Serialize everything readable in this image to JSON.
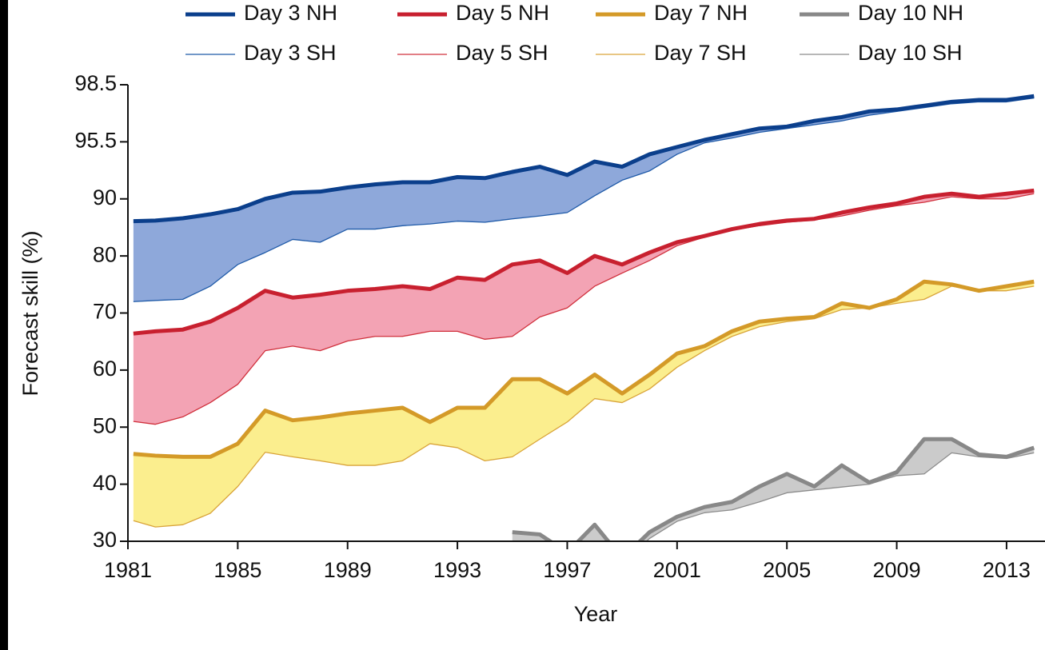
{
  "chart_data": {
    "type": "line",
    "xlabel": "Year",
    "ylabel": "Forecast skill (%)",
    "yscale": "tick-piecewise",
    "x": [
      1981.2,
      1982,
      1983,
      1984,
      1985,
      1986,
      1987,
      1988,
      1989,
      1990,
      1991,
      1992,
      1993,
      1994,
      1995,
      1996,
      1997,
      1998,
      1999,
      2000,
      2001,
      2002,
      2003,
      2004,
      2005,
      2006,
      2007,
      2008,
      2009,
      2010,
      2011,
      2012,
      2013,
      2014
    ],
    "xlim": [
      1981,
      2014.4
    ],
    "xticks": [
      1981,
      1985,
      1989,
      1993,
      1997,
      2001,
      2005,
      2009,
      2013
    ],
    "ylim": [
      30,
      98.5
    ],
    "yticks": [
      30,
      40,
      50,
      60,
      70,
      80,
      90,
      95.5,
      98.5
    ],
    "series": [
      {
        "name": "Day 3 NH",
        "color": "#0b3f8c",
        "linewidth": 5,
        "fill": "#8ea8da",
        "values": [
          86.1,
          86.2,
          86.6,
          87.3,
          88.2,
          90,
          90.6,
          90.7,
          91.1,
          91.4,
          91.6,
          91.6,
          92.1,
          92,
          92.6,
          93.1,
          92.3,
          93.6,
          93.1,
          94.3,
          95,
          95.6,
          95.9,
          96.2,
          96.3,
          96.6,
          96.8,
          97.1,
          97.2,
          97.4,
          97.6,
          97.7,
          97.7,
          97.9
        ]
      },
      {
        "name": "Day 3 SH",
        "color": "#1f5aa8",
        "linewidth": 1.3,
        "values": [
          72,
          72.2,
          72.4,
          74.7,
          78.5,
          80.6,
          82.9,
          82.4,
          84.7,
          84.7,
          85.3,
          85.6,
          86.1,
          85.9,
          86.5,
          87,
          87.6,
          90.3,
          91.8,
          92.7,
          94.3,
          95.4,
          95.7,
          96,
          96.2,
          96.4,
          96.6,
          96.9,
          97.1,
          97.3,
          97.5,
          97.6,
          97.6,
          97.8
        ]
      },
      {
        "name": "Day 5 NH",
        "color": "#c8202f",
        "linewidth": 5,
        "fill": "#f3a3b4",
        "values": [
          66.4,
          66.8,
          67.1,
          68.5,
          70.9,
          73.9,
          72.7,
          73.2,
          73.9,
          74.2,
          74.7,
          74.2,
          76.2,
          75.8,
          78.5,
          79.2,
          77,
          80,
          78.5,
          80.6,
          82.4,
          83.5,
          84.7,
          85.6,
          86.2,
          86.5,
          87.6,
          88.5,
          89.2,
          90.2,
          90.5,
          90.2,
          90.5,
          90.8
        ]
      },
      {
        "name": "Day 5 SH",
        "color": "#d0303c",
        "linewidth": 1.3,
        "values": [
          51,
          50.5,
          51.8,
          54.3,
          57.5,
          63.4,
          64.2,
          63.4,
          65.1,
          65.9,
          65.9,
          66.8,
          66.8,
          65.4,
          65.9,
          69.3,
          70.9,
          74.7,
          77,
          79.2,
          81.8,
          83.3,
          84.5,
          85.3,
          85.9,
          86.3,
          87,
          88,
          88.8,
          89.4,
          90.2,
          90,
          90,
          90.5
        ]
      },
      {
        "name": "Day 7 NH",
        "color": "#d49a28",
        "linewidth": 5,
        "fill": "#fbee8e",
        "values": [
          45.3,
          45,
          44.8,
          44.8,
          47.1,
          52.9,
          51.2,
          51.7,
          52.4,
          52.9,
          53.4,
          50.9,
          53.4,
          53.4,
          58.4,
          58.4,
          55.9,
          59.2,
          55.9,
          59.2,
          62.9,
          64.2,
          66.8,
          68.5,
          69,
          69.3,
          71.7,
          70.9,
          72.4,
          75.5,
          75,
          73.9,
          74.7,
          75.5
        ]
      },
      {
        "name": "Day 7 SH",
        "color": "#d9a43a",
        "linewidth": 1.3,
        "values": [
          33.6,
          32.5,
          32.9,
          34.9,
          39.6,
          45.6,
          44.8,
          44.1,
          43.3,
          43.3,
          44.1,
          47.1,
          46.4,
          44.1,
          44.8,
          47.9,
          50.9,
          55,
          54.3,
          56.7,
          60.5,
          63.4,
          65.9,
          67.6,
          68.5,
          69,
          70.6,
          70.9,
          71.7,
          72.4,
          74.7,
          73.9,
          73.9,
          74.7
        ]
      },
      {
        "name": "Day 10 NH",
        "color": "#888888",
        "linewidth": 5,
        "fill": "#cbcbcb",
        "values": [
          null,
          null,
          null,
          null,
          null,
          null,
          null,
          null,
          null,
          null,
          null,
          null,
          null,
          null,
          31.6,
          31.2,
          28,
          32.9,
          27,
          31.6,
          34.3,
          36,
          36.9,
          39.6,
          41.8,
          39.6,
          43.3,
          40.3,
          42.1,
          47.9,
          47.9,
          45.2,
          44.8,
          46.4
        ]
      },
      {
        "name": "Day 10 SH",
        "color": "#8c8c8c",
        "linewidth": 1.3,
        "values": [
          null,
          null,
          null,
          null,
          null,
          null,
          null,
          null,
          null,
          null,
          null,
          null,
          null,
          null,
          28,
          30,
          27,
          30,
          26,
          30.5,
          33.5,
          35,
          35.5,
          36.9,
          38.5,
          39,
          39.5,
          40,
          41.5,
          41.8,
          45.5,
          44.8,
          44.5,
          45.5
        ]
      }
    ]
  }
}
